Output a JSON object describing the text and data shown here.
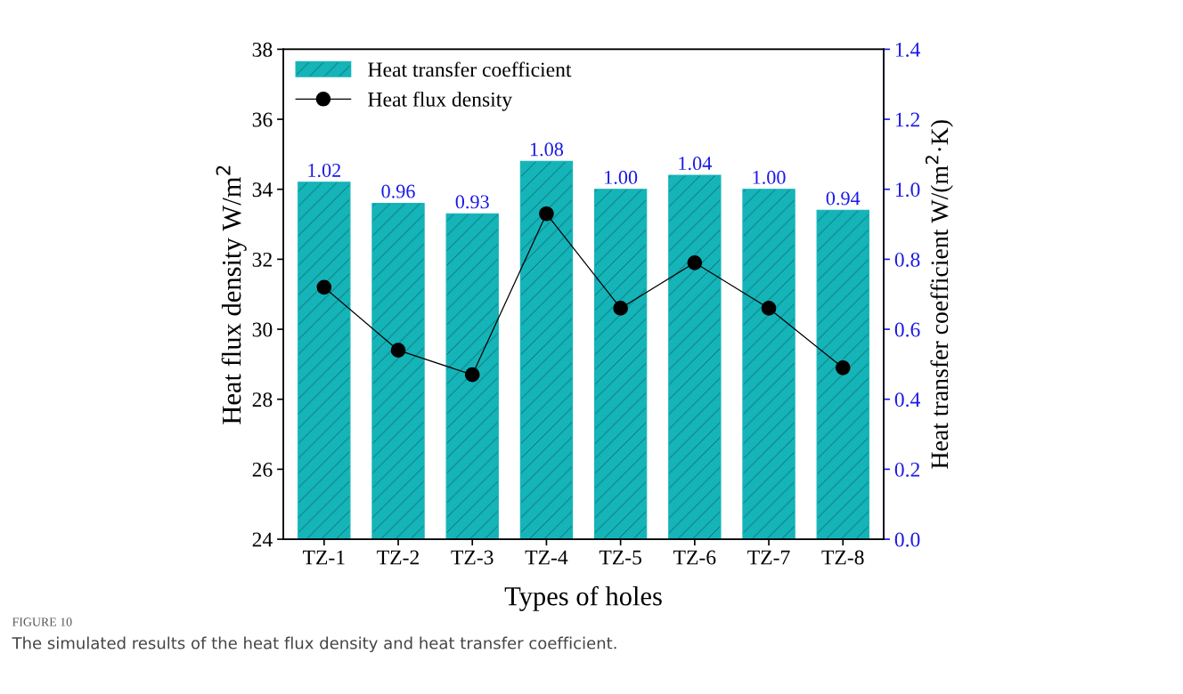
{
  "chart_data": {
    "type": "bar",
    "categories": [
      "TZ-1",
      "TZ-2",
      "TZ-3",
      "TZ-4",
      "TZ-5",
      "TZ-6",
      "TZ-7",
      "TZ-8"
    ],
    "xlabel": "Types of holes",
    "ylabel": "Heat flux density W/m$^{2}$",
    "y2label": "Heat transfer coefficient W/(m$^{2}$·K)",
    "series": [
      {
        "name": "Heat transfer coefficient",
        "axis": "y2",
        "color": "#14b4b8",
        "values": [
          1.02,
          0.96,
          0.93,
          1.08,
          1.0,
          1.04,
          1.0,
          0.94
        ],
        "value_labels": [
          "1.02",
          "0.96",
          "0.93",
          "1.08",
          "1.00",
          "1.04",
          "1.00",
          "0.94"
        ]
      },
      {
        "name": "Heat flux density",
        "type": "line",
        "color": "#000000",
        "marker": "circle",
        "values": [
          31.2,
          29.4,
          28.7,
          33.3,
          30.6,
          31.9,
          30.6,
          28.9
        ]
      }
    ],
    "ylim": [
      24,
      38
    ],
    "yticks": [
      24,
      26,
      28,
      30,
      32,
      34,
      36,
      38
    ],
    "y2lim": [
      0.0,
      1.4
    ],
    "y2ticks": [
      {
        "value": 0,
        "label": "0.0"
      },
      {
        "value": 0.2,
        "label": "0.2"
      },
      {
        "value": 0.4,
        "label": "0.4"
      },
      {
        "value": 0.6,
        "label": "0.6"
      },
      {
        "value": 0.8,
        "label": "0.8"
      },
      {
        "value": 1.0,
        "label": "1.0"
      },
      {
        "value": 1.2,
        "label": "1.2"
      },
      {
        "value": 1.4,
        "label": "1.4"
      }
    ],
    "legend": "top left",
    "grid": false,
    "annotations": [
      "FIGURE 10",
      "The simulated results of the heat flux density and heat transfer coefficient."
    ]
  }
}
